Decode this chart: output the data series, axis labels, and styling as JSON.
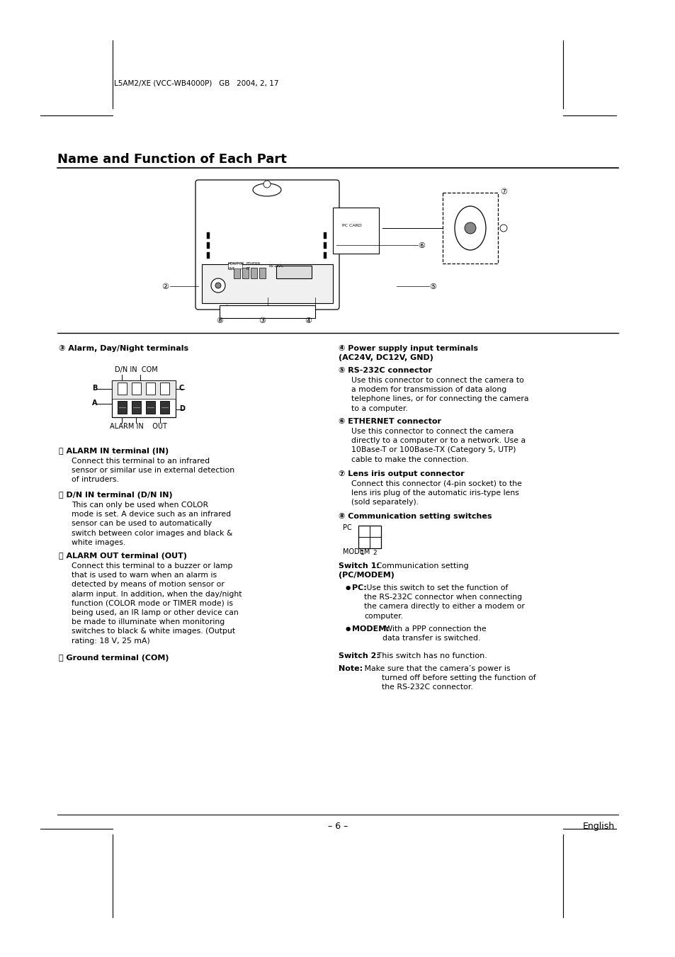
{
  "bg_color": "#ffffff",
  "page_width": 9.54,
  "page_height": 13.51,
  "header_text": "L5AM2/XE (VCC-WB4000P)   GB   2004, 2, 17",
  "title": "Name and Function of Each Part",
  "footer_center": "– 6 –",
  "footer_right": "English",
  "section9_title": "③ Alarm, Day/Night terminals",
  "section10_title": "④ Power supply input terminals",
  "section10_subtitle": "(AC24V, DC12V, GND)",
  "section11_title": "⑤ RS-232C connector",
  "section11_body": "Use this connector to connect the camera to\na modem for transmission of data along\ntelephone lines, or for connecting the camera\nto a computer.",
  "section12_title": "⑥ ETHERNET connector",
  "section12_body": "Use this connector to connect the camera\ndirectly to a computer or to a network. Use a\n10Base-T or 100Base-TX (Category 5, UTP)\ncable to make the connection.",
  "section13_title": "⑦ Lens iris output connector",
  "section13_body": "Connect this connector (4-pin socket) to the\nlens iris plug of the automatic iris-type lens\n(sold separately).",
  "section14_title": "⑧ Communication setting switches",
  "termA_title": "Ⓐ ALARM IN terminal (IN)",
  "termA_body": "Connect this terminal to an infrared\nsensor or similar use in external detection\nof intruders.",
  "termB_title": "Ⓑ D/N IN terminal (D/N IN)",
  "termB_body": "This can only be used when COLOR\nmode is set. A device such as an infrared\nsensor can be used to automatically\nswitch between color images and black &\nwhite images.",
  "termC_title": "Ⓒ ALARM OUT terminal (OUT)",
  "termC_body": "Connect this terminal to a buzzer or lamp\nthat is used to warn when an alarm is\ndetected by means of motion sensor or\nalarm input. In addition, when the day/night\nfunction (COLOR mode or TIMER mode) is\nbeing used, an IR lamp or other device can\nbe made to illuminate when monitoring\nswitches to black & white images. (Output\nrating: 18 V, 25 mA)",
  "termD_title": "Ⓓ Ground terminal (COM)",
  "dn_in_com_label": "D/N IN  COM",
  "alarm_in_out_label": "ALARM IN    OUT",
  "switch1_title": "Switch 1:",
  "switch1_body": " Communication setting",
  "switch1_sub": "(PC/MODEM)",
  "pc_bold": "PC:",
  "pc_text": " Use this switch to set the function of\nthe RS-232C connector when connecting\nthe camera directly to either a modem or\ncomputer.",
  "modem_bold": "MODEM:",
  "modem_text": " With a PPP connection the\ndata transfer is switched.",
  "switch2_title": "Switch 2:",
  "switch2_text": " This switch has no function.",
  "note_bold": "Note:",
  "note_text": " Make sure that the camera’s power is\n        turned off before setting the function of\n        the RS-232C connector."
}
